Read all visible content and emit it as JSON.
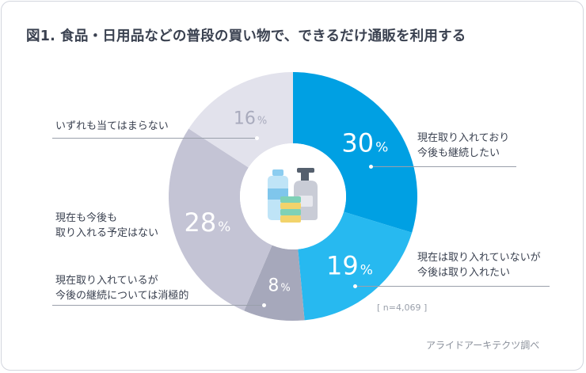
{
  "title": "図1. 食品・日用品などの普段の買い物で、できるだけ通販を利用する",
  "sample_note": "[ n=4,069 ]",
  "source": "アライドアーキテクツ調べ",
  "chart_data": {
    "type": "pie",
    "donut": true,
    "title": "図1. 食品・日用品などの普段の買い物で、できるだけ通販を利用する",
    "slices": [
      {
        "label_lines": [
          "現在取り入れており",
          "今後も継続したい"
        ],
        "value": 30,
        "color": "#00a0e3"
      },
      {
        "label_lines": [
          "現在は取り入れていないが",
          "今後は取り入れたい"
        ],
        "value": 19,
        "color": "#27b9f0"
      },
      {
        "label_lines": [
          "現在取り入れているが",
          "今後の継続については消極的"
        ],
        "value": 8,
        "color": "#a6a8bb"
      },
      {
        "label_lines": [
          "現在も今後も",
          "取り入れる予定はない"
        ],
        "value": 28,
        "color": "#c4c4d5"
      },
      {
        "label_lines": [
          "いずれも当てはまらない"
        ],
        "value": 16,
        "color": "#e2e2ec"
      }
    ],
    "value_suffix": "%",
    "center_icon": "bottles-and-sponge-icon"
  }
}
